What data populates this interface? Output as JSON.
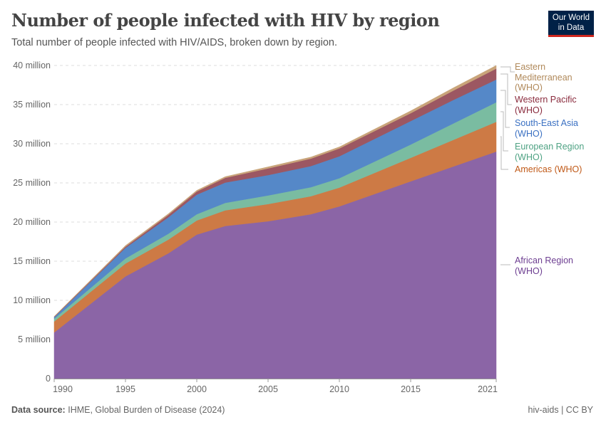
{
  "header": {
    "title": "Number of people infected with HIV by region",
    "subtitle": "Total number of people infected with HIV/AIDS, broken down by region.",
    "logo": "Our World in Data"
  },
  "footer": {
    "source_label": "Data source:",
    "source": "IHME, Global Burden of Disease (2024)",
    "right": "hiv-aids | CC BY"
  },
  "chart_data": {
    "type": "area",
    "stacked": true,
    "title": "Number of people infected with HIV by region",
    "xlim": [
      1990,
      2021
    ],
    "ylim": [
      0,
      40000000
    ],
    "grid": "horizontal dashed",
    "legend": "right (inline labels)",
    "x_ticks": [
      "1990",
      "1995",
      "2000",
      "2005",
      "2010",
      "2015",
      "2021"
    ],
    "y_ticks": [
      "0",
      "5 million",
      "10 million",
      "15 million",
      "20 million",
      "25 million",
      "30 million",
      "35 million",
      "40 million"
    ],
    "x": [
      1990,
      1995,
      1998,
      2000,
      2002,
      2005,
      2008,
      2010,
      2015,
      2018,
      2021
    ],
    "series": [
      {
        "name": "African Region (WHO)",
        "color": "#8b65a6",
        "label_color": "#6d3e91",
        "values": [
          5900000,
          13060000,
          16000000,
          18400000,
          19500000,
          20100000,
          21000000,
          22000000,
          25200000,
          27100000,
          29000000
        ]
      },
      {
        "name": "Americas (WHO)",
        "color": "#cd7a45",
        "label_color": "#c05917",
        "values": [
          1400000,
          1640000,
          1750000,
          1800000,
          2000000,
          2200000,
          2300000,
          2400000,
          3000000,
          3400000,
          3800000
        ]
      },
      {
        "name": "European Region (WHO)",
        "color": "#7abca1",
        "label_color": "#4ea283",
        "values": [
          350000,
          650000,
          750000,
          800000,
          950000,
          1100000,
          1150000,
          1200000,
          1700000,
          2100000,
          2500000
        ]
      },
      {
        "name": "South-East Asia (WHO)",
        "color": "#5588c8",
        "label_color": "#3a70c2",
        "values": [
          200000,
          1350000,
          2100000,
          2500000,
          2600000,
          2600000,
          2700000,
          2800000,
          3000000,
          3000000,
          2900000
        ]
      },
      {
        "name": "Western Pacific (WHO)",
        "color": "#9c5762",
        "label_color": "#8a2b3d",
        "values": [
          50000,
          150000,
          300000,
          400000,
          600000,
          850000,
          950000,
          1000000,
          1000000,
          1200000,
          1400000
        ]
      },
      {
        "name": "Eastern Mediterranean (WHO)",
        "color": "#c9a47a",
        "label_color": "#b0895a",
        "values": [
          50000,
          150000,
          150000,
          150000,
          150000,
          200000,
          200000,
          200000,
          300000,
          350000,
          400000
        ]
      }
    ]
  }
}
